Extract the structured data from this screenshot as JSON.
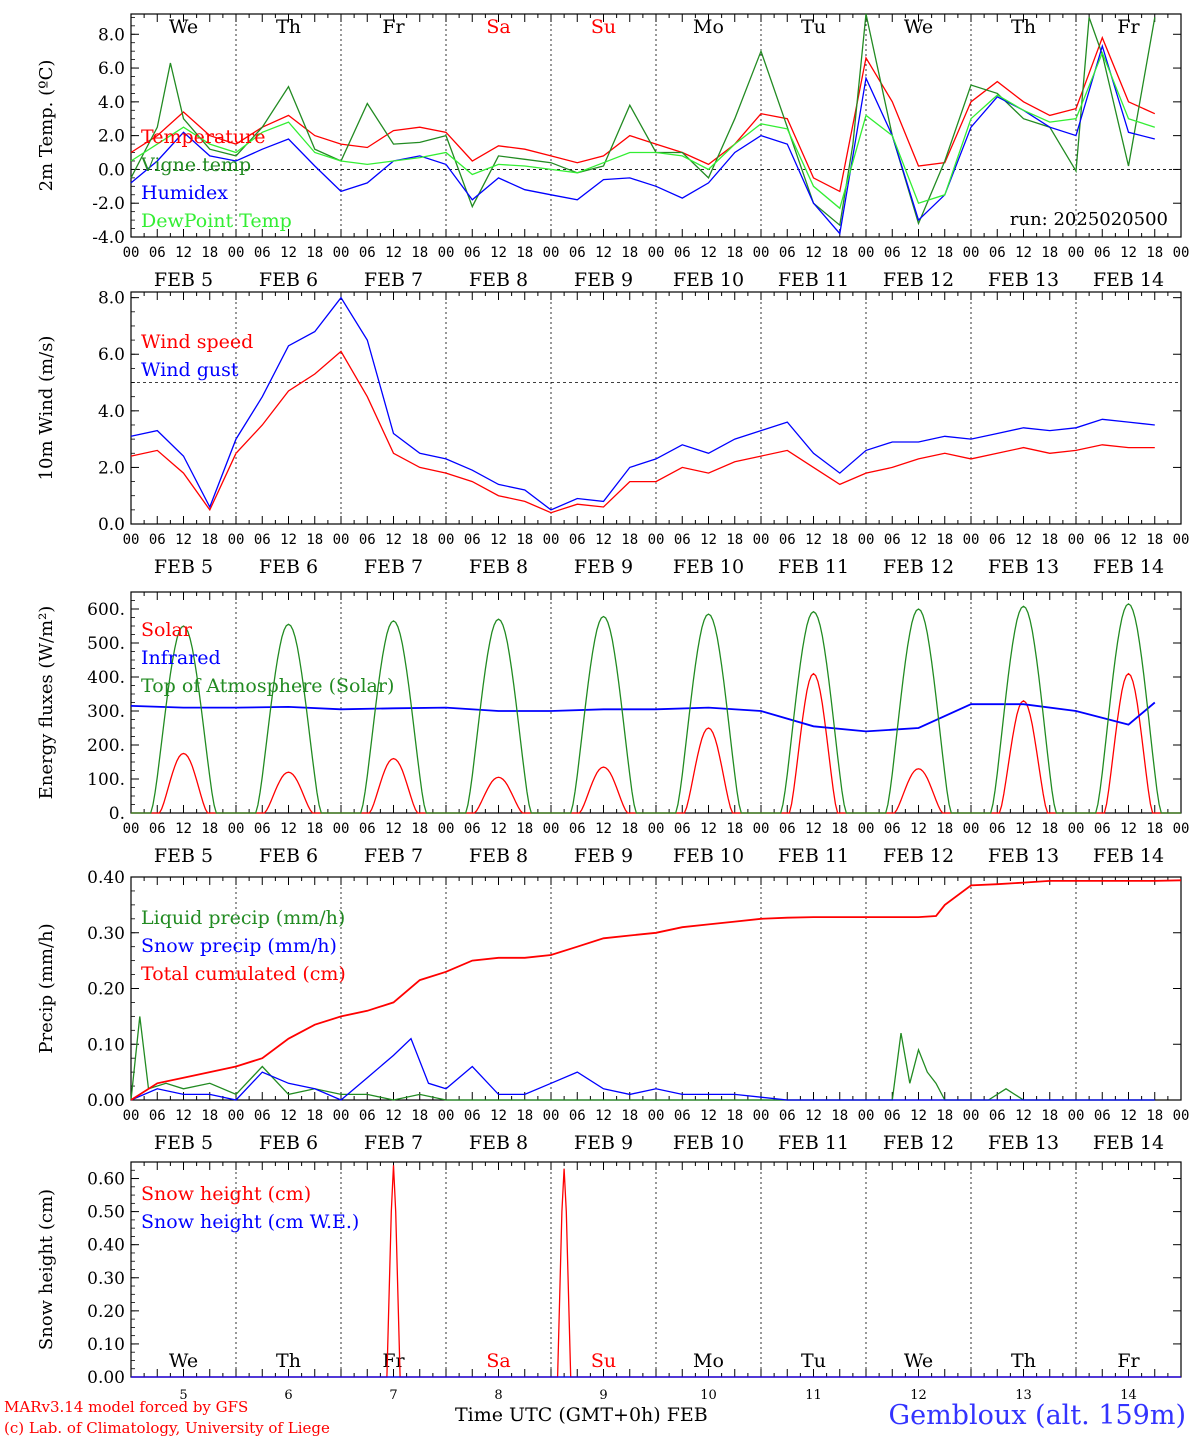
{
  "days": [
    "We",
    "Th",
    "Fr",
    "Sa",
    "Su",
    "Mo",
    "Tu",
    "We",
    "Th",
    "Fr"
  ],
  "weekend_color": "#ff0000",
  "date_labels": [
    "FEB  5",
    "FEB  6",
    "FEB  7",
    "FEB  8",
    "FEB  9",
    "FEB 10",
    "FEB 11",
    "FEB 12",
    "FEB 13",
    "FEB 14"
  ],
  "hour_ticks": [
    "00",
    "06",
    "12",
    "18"
  ],
  "bottom_dates": [
    "5",
    "6",
    "7",
    "8",
    "9",
    "10",
    "11",
    "12",
    "13",
    "14"
  ],
  "footer": {
    "line1": "MARv3.14 model forced by GFS",
    "line2": "(c) Lab. of Climatology, University of Liege",
    "time_label": "Time UTC (GMT+0h) FEB",
    "station": "Gembloux (alt. 159m)"
  },
  "chart_data": [
    {
      "type": "line",
      "ylabel": "2m Temp. (ºC)",
      "ylim": [
        -4,
        9.2
      ],
      "yticks": [
        "8.0",
        "6.0",
        "4.0",
        "2.0",
        "0.0",
        "-2.0",
        "-4.0"
      ],
      "ytick_values": [
        8,
        6,
        4,
        2,
        0,
        -2,
        -4
      ],
      "reference_line": 0,
      "annotation": "run: 2025020500",
      "x_unit": "hours since FEB 5 00 UTC",
      "series": [
        {
          "name": "Temperature",
          "color": "#ff0000",
          "x": [
            0,
            6,
            12,
            18,
            24,
            30,
            36,
            42,
            48,
            54,
            60,
            66,
            72,
            78,
            84,
            90,
            96,
            102,
            108,
            114,
            120,
            126,
            132,
            138,
            144,
            150,
            156,
            162,
            168,
            174,
            180,
            186,
            192,
            198,
            204,
            210,
            216,
            222,
            228,
            234
          ],
          "y": [
            1.0,
            2.0,
            3.4,
            2.0,
            1.5,
            2.5,
            3.2,
            2.0,
            1.5,
            1.3,
            2.3,
            2.5,
            2.2,
            0.5,
            1.4,
            1.2,
            0.8,
            0.4,
            0.8,
            2.0,
            1.5,
            1.0,
            0.3,
            1.5,
            3.3,
            3.0,
            -0.5,
            -1.3,
            6.6,
            4.0,
            0.2,
            0.4,
            4.0,
            5.2,
            4.0,
            3.2,
            3.6,
            7.8,
            4.0,
            3.3
          ]
        },
        {
          "name": "Vigne temp",
          "color": "#228b22",
          "x": [
            0,
            3,
            6,
            9,
            12,
            18,
            24,
            30,
            36,
            42,
            48,
            54,
            60,
            66,
            72,
            78,
            84,
            90,
            96,
            102,
            108,
            114,
            120,
            126,
            132,
            138,
            144,
            150,
            156,
            162,
            165,
            168,
            174,
            180,
            186,
            192,
            198,
            204,
            210,
            216,
            219,
            222,
            228,
            234
          ],
          "y": [
            -0.5,
            1.0,
            2.5,
            6.3,
            3.0,
            1.2,
            0.8,
            2.5,
            4.9,
            1.2,
            0.5,
            3.9,
            1.5,
            1.6,
            2.0,
            -2.2,
            0.8,
            0.6,
            0.4,
            -0.2,
            0.2,
            3.8,
            1.0,
            1.0,
            -0.5,
            3.0,
            7.0,
            2.5,
            -2.0,
            -3.3,
            1.5,
            9.3,
            2.0,
            -3.2,
            0.5,
            5.0,
            4.5,
            3.0,
            2.5,
            -0.1,
            9.0,
            6.8,
            0.2,
            9.0
          ]
        },
        {
          "name": "Humidex",
          "color": "#0000ff",
          "x": [
            0,
            6,
            12,
            18,
            24,
            30,
            36,
            42,
            48,
            54,
            60,
            66,
            72,
            78,
            84,
            90,
            96,
            102,
            108,
            114,
            120,
            126,
            132,
            138,
            144,
            150,
            156,
            162,
            168,
            174,
            180,
            186,
            192,
            198,
            204,
            210,
            216,
            222,
            228,
            234
          ],
          "y": [
            -0.8,
            0.5,
            2.2,
            0.8,
            0.5,
            1.2,
            1.8,
            0.2,
            -1.3,
            -0.8,
            0.5,
            0.8,
            0.3,
            -1.8,
            -0.5,
            -1.2,
            -1.5,
            -1.8,
            -0.6,
            -0.5,
            -1.0,
            -1.7,
            -0.8,
            1.0,
            2.0,
            1.5,
            -2.0,
            -3.8,
            5.4,
            2.0,
            -3.0,
            -1.5,
            2.5,
            4.3,
            3.5,
            2.5,
            2.0,
            7.3,
            2.2,
            1.8
          ]
        },
        {
          "name": "DewPoint Temp",
          "color": "#33ee33",
          "x": [
            0,
            6,
            12,
            18,
            24,
            30,
            36,
            42,
            48,
            54,
            60,
            66,
            72,
            78,
            84,
            90,
            96,
            102,
            108,
            114,
            120,
            126,
            132,
            138,
            144,
            150,
            156,
            162,
            168,
            174,
            180,
            186,
            192,
            198,
            204,
            210,
            216,
            222,
            228,
            234
          ],
          "y": [
            0.5,
            1.5,
            2.5,
            1.5,
            1.0,
            2.2,
            2.8,
            1.0,
            0.5,
            0.3,
            0.5,
            0.7,
            1.0,
            -0.3,
            0.3,
            0.2,
            0.0,
            -0.2,
            0.4,
            1.0,
            1.0,
            0.8,
            0.0,
            1.5,
            2.7,
            2.4,
            -1.0,
            -2.3,
            3.2,
            2.0,
            -2.0,
            -1.5,
            3.0,
            4.4,
            3.5,
            2.8,
            3.0,
            6.9,
            3.0,
            2.5
          ]
        }
      ]
    },
    {
      "type": "line",
      "ylabel": "10m Wind (m/s)",
      "ylim": [
        0,
        8.2
      ],
      "yticks": [
        "8.0",
        "6.0",
        "4.0",
        "2.0",
        "0.0"
      ],
      "ytick_values": [
        8,
        6,
        4,
        2,
        0
      ],
      "reference_line": 5,
      "x_unit": "hours since FEB 5 00 UTC",
      "series": [
        {
          "name": "Wind speed",
          "color": "#ff0000",
          "x": [
            0,
            6,
            12,
            18,
            24,
            30,
            36,
            42,
            48,
            54,
            60,
            66,
            72,
            78,
            84,
            90,
            96,
            102,
            108,
            114,
            120,
            126,
            132,
            138,
            144,
            150,
            156,
            162,
            168,
            174,
            180,
            186,
            192,
            198,
            204,
            210,
            216,
            222,
            228,
            234
          ],
          "y": [
            2.4,
            2.6,
            1.8,
            0.5,
            2.5,
            3.5,
            4.7,
            5.3,
            6.1,
            4.5,
            2.5,
            2.0,
            1.8,
            1.5,
            1.0,
            0.8,
            0.4,
            0.7,
            0.6,
            1.5,
            1.5,
            2.0,
            1.8,
            2.2,
            2.4,
            2.6,
            2.0,
            1.4,
            1.8,
            2.0,
            2.3,
            2.5,
            2.3,
            2.5,
            2.7,
            2.5,
            2.6,
            2.8,
            2.7,
            2.7
          ]
        },
        {
          "name": "Wind gust",
          "color": "#0000ff",
          "x": [
            0,
            6,
            12,
            18,
            24,
            30,
            36,
            42,
            48,
            54,
            60,
            66,
            72,
            78,
            84,
            90,
            96,
            102,
            108,
            114,
            120,
            126,
            132,
            138,
            144,
            150,
            156,
            162,
            168,
            174,
            180,
            186,
            192,
            198,
            204,
            210,
            216,
            222,
            228,
            234
          ],
          "y": [
            3.1,
            3.3,
            2.4,
            0.6,
            3.0,
            4.5,
            6.3,
            6.8,
            8.0,
            6.5,
            3.2,
            2.5,
            2.3,
            1.9,
            1.4,
            1.2,
            0.5,
            0.9,
            0.8,
            2.0,
            2.3,
            2.8,
            2.5,
            3.0,
            3.3,
            3.6,
            2.5,
            1.8,
            2.6,
            2.9,
            2.9,
            3.1,
            3.0,
            3.2,
            3.4,
            3.3,
            3.4,
            3.7,
            3.6,
            3.5
          ]
        }
      ]
    },
    {
      "type": "line",
      "ylabel": "Energy fluxes (W/m²)",
      "ylim": [
        0,
        650
      ],
      "yticks": [
        "600.",
        "500.",
        "400.",
        "300.",
        "200.",
        "100.",
        "0."
      ],
      "ytick_values": [
        600,
        500,
        400,
        300,
        200,
        100,
        0
      ],
      "x_unit": "hours since FEB 5 00 UTC",
      "series": [
        {
          "name": "Solar",
          "color": "#ff0000",
          "peaks_x": [
            12,
            36,
            60,
            84,
            108,
            132,
            156,
            180,
            204,
            228
          ],
          "peaks_y": [
            175,
            120,
            160,
            105,
            135,
            250,
            410,
            130,
            330,
            410
          ]
        },
        {
          "name": "Infrared",
          "color": "#0000ff",
          "x": [
            0,
            12,
            24,
            36,
            48,
            60,
            72,
            84,
            96,
            108,
            120,
            132,
            144,
            156,
            168,
            174,
            180,
            192,
            204,
            216,
            228,
            234
          ],
          "y": [
            315,
            310,
            310,
            312,
            305,
            308,
            310,
            300,
            300,
            305,
            305,
            310,
            300,
            255,
            240,
            245,
            250,
            320,
            320,
            300,
            260,
            325
          ]
        },
        {
          "name": "Top of Atmosphere (Solar)",
          "color": "#228b22",
          "peaks_x": [
            12,
            36,
            60,
            84,
            108,
            132,
            156,
            180,
            204,
            228
          ],
          "peaks_y": [
            550,
            555,
            565,
            570,
            578,
            585,
            592,
            600,
            608,
            615
          ]
        }
      ]
    },
    {
      "type": "line",
      "ylabel": "Precip (mm/h)",
      "ylim": [
        0,
        0.4
      ],
      "yticks": [
        "0.40",
        "0.30",
        "0.20",
        "0.10",
        "0.00"
      ],
      "ytick_values": [
        0.4,
        0.3,
        0.2,
        0.1,
        0
      ],
      "x_unit": "hours since FEB 5 00 UTC",
      "series": [
        {
          "name": "Liquid precip (mm/h)",
          "color": "#228b22",
          "x": [
            0,
            2,
            4,
            8,
            12,
            18,
            24,
            30,
            36,
            42,
            48,
            54,
            60,
            66,
            72,
            78,
            84,
            90,
            96,
            102,
            108,
            114,
            120,
            126,
            132,
            138,
            144,
            150,
            156,
            162,
            168,
            174,
            176,
            178,
            180,
            182,
            184,
            186,
            190,
            196,
            200,
            204,
            210,
            216,
            222,
            228,
            234
          ],
          "y": [
            0,
            0.15,
            0.02,
            0.03,
            0.02,
            0.03,
            0.01,
            0.06,
            0.01,
            0.02,
            0.01,
            0.01,
            0,
            0.01,
            0,
            0,
            0,
            0,
            0,
            0,
            0,
            0,
            0,
            0,
            0,
            0,
            0,
            0,
            0,
            0,
            0,
            0,
            0.12,
            0.03,
            0.09,
            0.05,
            0.03,
            0,
            0,
            0,
            0.02,
            0,
            0,
            0,
            0,
            0,
            0
          ]
        },
        {
          "name": "Snow precip (mm/h)",
          "color": "#0000ff",
          "x": [
            0,
            6,
            12,
            18,
            24,
            30,
            36,
            42,
            48,
            54,
            60,
            64,
            68,
            72,
            78,
            84,
            90,
            96,
            102,
            108,
            114,
            120,
            126,
            132,
            138,
            144,
            150,
            156,
            162,
            168,
            174,
            180,
            186,
            192,
            198,
            204,
            210,
            216,
            222,
            228,
            234
          ],
          "y": [
            0,
            0.02,
            0.01,
            0.01,
            0,
            0.05,
            0.03,
            0.02,
            0,
            0.04,
            0.08,
            0.11,
            0.03,
            0.02,
            0.06,
            0.01,
            0.01,
            0.03,
            0.05,
            0.02,
            0.01,
            0.02,
            0.01,
            0.01,
            0.01,
            0.005,
            0,
            0,
            0,
            0,
            0,
            0,
            0,
            0,
            0,
            0,
            0,
            0,
            0,
            0,
            0
          ]
        },
        {
          "name": "Total cumulated (cm)",
          "color": "#ff0000",
          "x": [
            0,
            6,
            12,
            18,
            24,
            30,
            36,
            42,
            48,
            54,
            60,
            66,
            72,
            78,
            84,
            90,
            96,
            102,
            108,
            114,
            120,
            126,
            132,
            138,
            144,
            150,
            156,
            162,
            168,
            174,
            180,
            184,
            186,
            192,
            198,
            204,
            210,
            216,
            222,
            228,
            234,
            240
          ],
          "y": [
            0,
            0.03,
            0.04,
            0.05,
            0.06,
            0.075,
            0.11,
            0.135,
            0.15,
            0.16,
            0.175,
            0.215,
            0.23,
            0.25,
            0.255,
            0.255,
            0.26,
            0.275,
            0.29,
            0.295,
            0.3,
            0.31,
            0.315,
            0.32,
            0.325,
            0.327,
            0.328,
            0.328,
            0.328,
            0.328,
            0.328,
            0.33,
            0.35,
            0.385,
            0.387,
            0.39,
            0.393,
            0.393,
            0.393,
            0.393,
            0.393,
            0.394
          ]
        }
      ]
    },
    {
      "type": "line",
      "ylabel": "Snow height (cm)",
      "ylim": [
        0,
        0.65
      ],
      "yticks": [
        "0.60",
        "0.50",
        "0.40",
        "0.30",
        "0.20",
        "0.10",
        "0.00"
      ],
      "ytick_values": [
        0.6,
        0.5,
        0.4,
        0.3,
        0.2,
        0.1,
        0
      ],
      "x_unit": "hours since FEB 5 00 UTC",
      "series": [
        {
          "name": "Snow height (cm)",
          "color": "#ff0000",
          "x": [
            0,
            58.5,
            59.5,
            60,
            60.5,
            61.5,
            97.5,
            98.5,
            99,
            99.5,
            100.5,
            240
          ],
          "y": [
            0,
            0,
            0.5,
            0.64,
            0.5,
            0,
            0,
            0.5,
            0.63,
            0.5,
            0,
            0
          ]
        },
        {
          "name": "Snow height (cm W.E.)",
          "color": "#0000ff",
          "x": [
            0,
            240
          ],
          "y": [
            0,
            0
          ]
        }
      ]
    }
  ]
}
